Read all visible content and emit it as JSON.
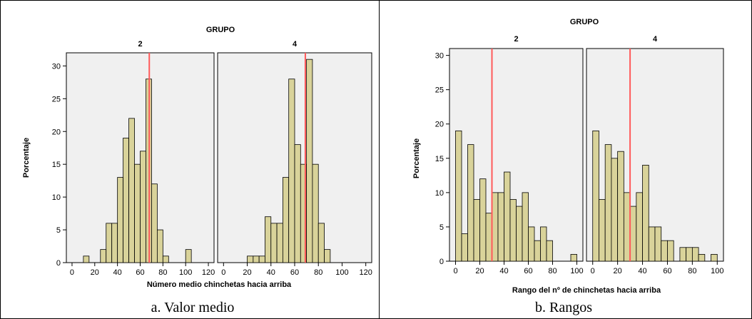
{
  "chart_data": [
    {
      "type": "bar",
      "panel_title": "GRUPO",
      "facets": [
        "2",
        "4"
      ],
      "xlabel": "Número medio chinchetas hacia arriba",
      "ylabel": "Porcentaje",
      "caption": "a. Valor medio",
      "xlim": [
        -5,
        125
      ],
      "ylim": [
        0,
        32
      ],
      "xticks": [
        0,
        20,
        40,
        60,
        80,
        100,
        120
      ],
      "yticks": [
        0,
        5,
        10,
        15,
        20,
        25,
        30
      ],
      "bin_width": 5,
      "reference_color": "#ff5a5a",
      "bar_color": "#d9d39a",
      "series": [
        {
          "name": "2",
          "reference_line": 68,
          "bins": [
            10,
            15,
            20,
            25,
            30,
            35,
            40,
            45,
            50,
            55,
            60,
            65,
            70,
            75,
            80,
            85,
            90,
            95,
            100,
            105
          ],
          "values": [
            1,
            0,
            0,
            2,
            6,
            6,
            13,
            19,
            22,
            15,
            17,
            28,
            12,
            5,
            1,
            0,
            0,
            0,
            2,
            0
          ]
        },
        {
          "name": "4",
          "reference_line": 69,
          "bins": [
            20,
            25,
            30,
            35,
            40,
            45,
            50,
            55,
            60,
            65,
            70,
            75,
            80,
            85
          ],
          "values": [
            1,
            1,
            1,
            7,
            6,
            6,
            13,
            28,
            18,
            15,
            31,
            15,
            6,
            2
          ]
        }
      ]
    },
    {
      "type": "bar",
      "panel_title": "GRUPO",
      "facets": [
        "2",
        "4"
      ],
      "xlabel": "Rango del nº de  chinchetas hacia arriba",
      "ylabel": "Porcentaje",
      "caption": "b. Rangos",
      "xlim": [
        -5,
        105
      ],
      "ylim": [
        0,
        31
      ],
      "xticks": [
        0,
        20,
        40,
        60,
        80,
        100
      ],
      "yticks": [
        0,
        5,
        10,
        15,
        20,
        25,
        30
      ],
      "bin_width": 5,
      "reference_color": "#ff5a5a",
      "bar_color": "#d9d39a",
      "series": [
        {
          "name": "2",
          "reference_line": 30,
          "bins": [
            0,
            5,
            10,
            15,
            20,
            25,
            30,
            35,
            40,
            45,
            50,
            55,
            60,
            65,
            70,
            75,
            80,
            85,
            90,
            95
          ],
          "values": [
            19,
            4,
            17,
            9,
            12,
            7,
            10,
            10,
            13,
            9,
            8,
            10,
            5,
            3,
            5,
            3,
            0,
            0,
            0,
            1
          ]
        },
        {
          "name": "4",
          "reference_line": 30,
          "bins": [
            0,
            5,
            10,
            15,
            20,
            25,
            30,
            35,
            40,
            45,
            50,
            55,
            60,
            65,
            70,
            75,
            80,
            85,
            90,
            95
          ],
          "values": [
            19,
            9,
            17,
            15,
            16,
            10,
            8,
            10,
            14,
            5,
            5,
            3,
            3,
            0,
            2,
            2,
            2,
            1,
            0,
            1
          ]
        }
      ]
    }
  ]
}
